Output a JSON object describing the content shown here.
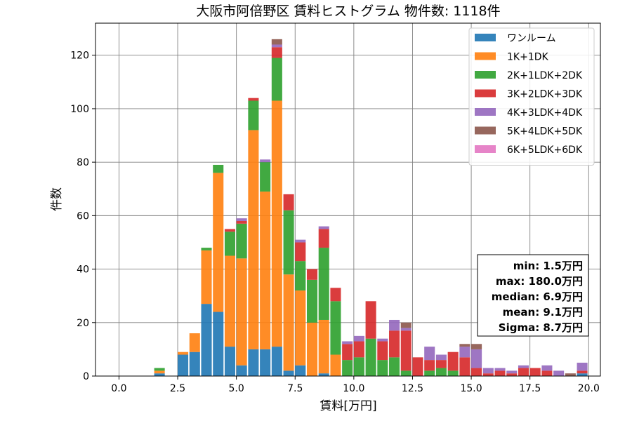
{
  "chart_data": {
    "type": "bar",
    "stacked": true,
    "title": "大阪市阿倍野区 賃料ヒストグラム 物件数: 1118件",
    "xlabel": "賃料[万円]",
    "ylabel": "件数",
    "xlim": [
      -1.0,
      20.5
    ],
    "ylim": [
      0,
      132
    ],
    "xticks": [
      0.0,
      2.5,
      5.0,
      7.5,
      10.0,
      12.5,
      15.0,
      17.5,
      20.0
    ],
    "xtick_labels": [
      "0.0",
      "2.5",
      "5.0",
      "7.5",
      "10.0",
      "12.5",
      "15.0",
      "17.5",
      "20.0"
    ],
    "yticks": [
      0,
      20,
      40,
      60,
      80,
      100,
      120
    ],
    "ytick_labels": [
      "0",
      "20",
      "40",
      "60",
      "80",
      "100",
      "120"
    ],
    "grid": true,
    "legend_position": "top-right",
    "bin_width": 0.5,
    "bin_starts": [
      1.5,
      2.5,
      3.0,
      3.5,
      4.0,
      4.5,
      5.0,
      5.5,
      6.0,
      6.5,
      7.0,
      7.5,
      8.0,
      8.5,
      9.0,
      9.5,
      10.0,
      10.5,
      11.0,
      11.5,
      12.0,
      12.5,
      13.0,
      13.5,
      14.0,
      14.5,
      15.0,
      15.5,
      16.0,
      16.5,
      17.0,
      17.5,
      18.0,
      18.5,
      19.0,
      19.5
    ],
    "series": [
      {
        "name": "ワンルーム",
        "color": "#1f77b4",
        "values": [
          1,
          8,
          9,
          27,
          24,
          11,
          4,
          10,
          10,
          11,
          2,
          4,
          0,
          1,
          0,
          0,
          0,
          0,
          0,
          0,
          0,
          0,
          0,
          0,
          0,
          0,
          0,
          0,
          0,
          0,
          0,
          0,
          0,
          0,
          0,
          1
        ]
      },
      {
        "name": "1K+1DK",
        "color": "#ff7f0e",
        "values": [
          1,
          1,
          7,
          20,
          52,
          34,
          40,
          82,
          59,
          92,
          36,
          28,
          20,
          20,
          8,
          0,
          0,
          0,
          0,
          0,
          0,
          0,
          0,
          0,
          0,
          0,
          0,
          0,
          0,
          0,
          0,
          0,
          0,
          0,
          0,
          0
        ]
      },
      {
        "name": "2K+1LDK+2DK",
        "color": "#2ca02c",
        "values": [
          1,
          0,
          0,
          1,
          3,
          9,
          13,
          11,
          11,
          16,
          24,
          11,
          16,
          27,
          20,
          6,
          7,
          14,
          6,
          7,
          2,
          0,
          2,
          3,
          2,
          0,
          0,
          0,
          0,
          0,
          0,
          0,
          0,
          0,
          0,
          0
        ]
      },
      {
        "name": "3K+2LDK+3DK",
        "color": "#d62728",
        "values": [
          0,
          0,
          0,
          0,
          0,
          1,
          1,
          1,
          0,
          4,
          6,
          7,
          4,
          7,
          5,
          6,
          6,
          14,
          7,
          10,
          15,
          7,
          4,
          3,
          7,
          7,
          3,
          1,
          2,
          1,
          3,
          3,
          2,
          0,
          0,
          1
        ]
      },
      {
        "name": "4K+3LDK+4DK",
        "color": "#9467bd",
        "values": [
          0,
          0,
          0,
          0,
          0,
          0,
          1,
          0,
          1,
          1,
          0,
          1,
          0,
          1,
          0,
          1,
          2,
          0,
          1,
          4,
          1,
          0,
          5,
          2,
          0,
          4,
          7,
          2,
          1,
          1,
          1,
          0,
          2,
          2,
          0,
          3
        ]
      },
      {
        "name": "5K+4LDK+5DK",
        "color": "#8c564b",
        "values": [
          0,
          0,
          0,
          0,
          0,
          0,
          0,
          0,
          0,
          2,
          0,
          0,
          0,
          0,
          0,
          0,
          0,
          0,
          0,
          0,
          2,
          0,
          0,
          0,
          0,
          1,
          2,
          0,
          0,
          0,
          0,
          0,
          0,
          0,
          1,
          0
        ]
      },
      {
        "name": "6K+5LDK+6DK",
        "color": "#e377c2",
        "values": [
          0,
          0,
          0,
          0,
          0,
          0,
          0,
          0,
          0,
          0,
          0,
          0,
          0,
          0,
          0,
          0,
          0,
          0,
          0,
          0,
          0,
          0,
          0,
          0,
          0,
          0,
          0,
          0,
          0,
          0,
          0,
          0,
          0,
          0,
          0,
          0
        ]
      }
    ],
    "stats_box": [
      "min: 1.5万円",
      "max: 180.0万円",
      "median: 6.9万円",
      "mean: 9.1万円",
      "Sigma: 8.7万円"
    ]
  }
}
